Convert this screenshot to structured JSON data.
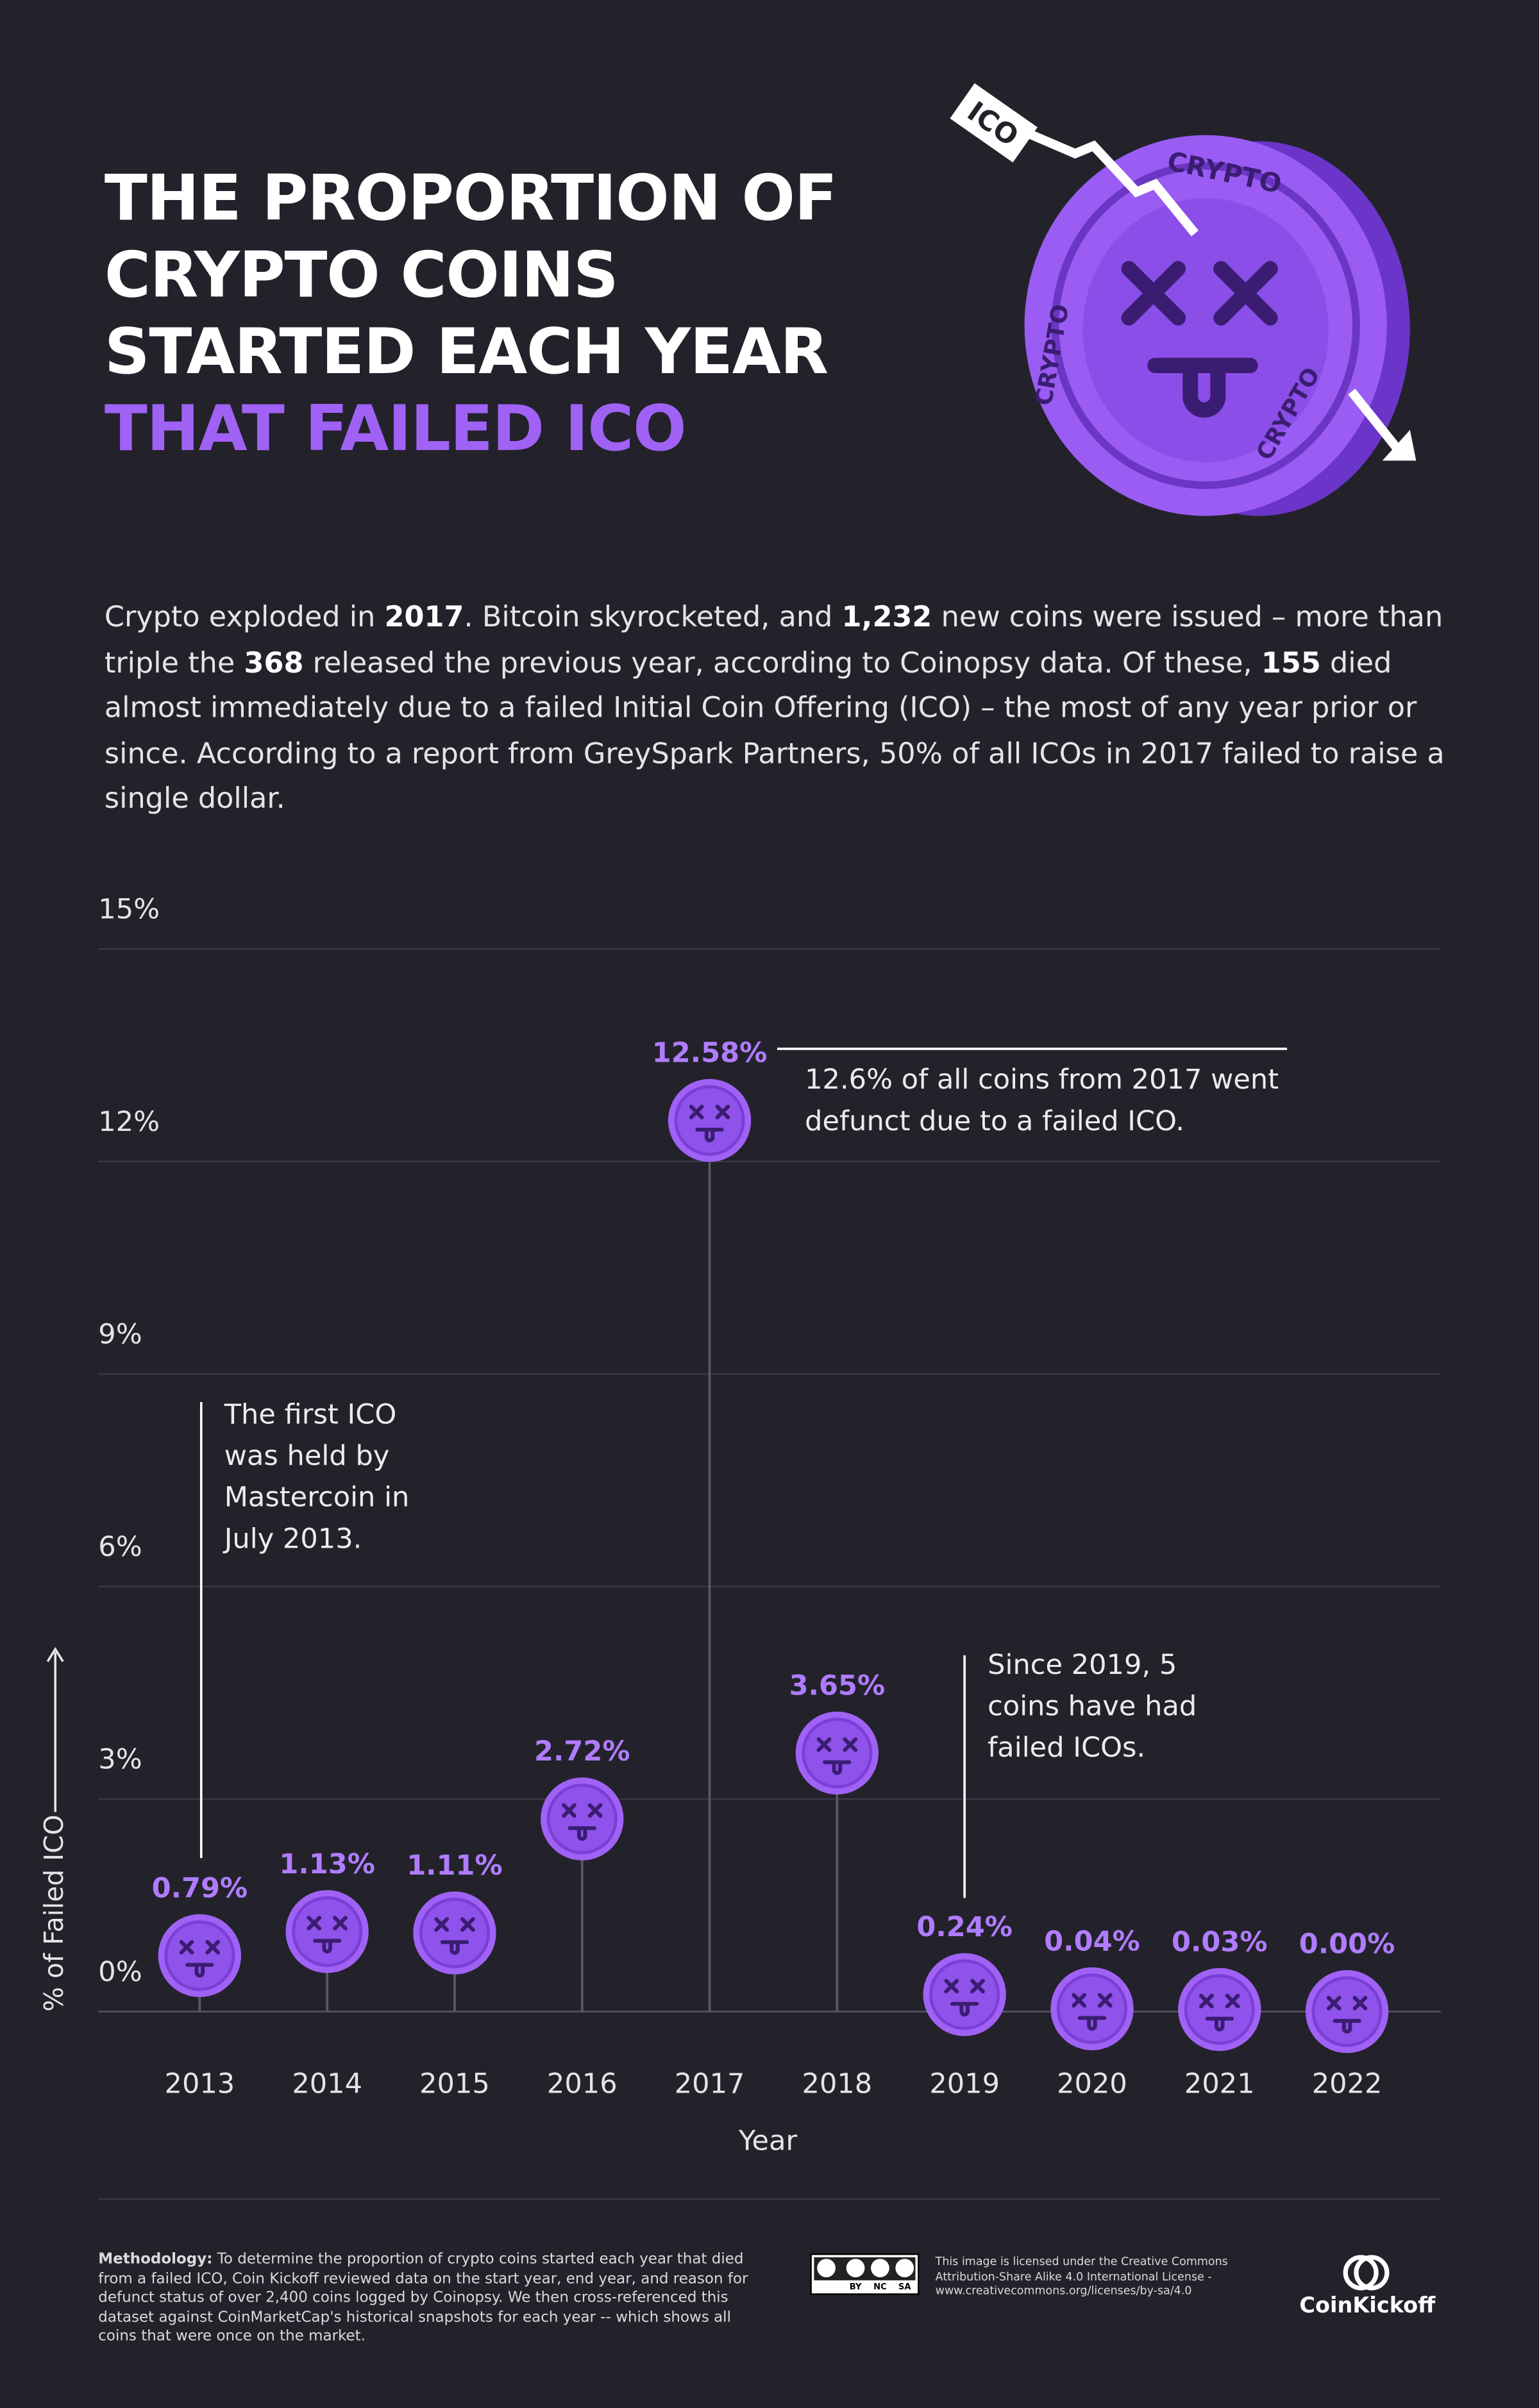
{
  "header": {
    "title_lines": [
      "THE PROPORTION OF",
      "CRYPTO COINS",
      "STARTED EACH YEAR"
    ],
    "highlight": "THAT FAILED ICO"
  },
  "illustration": {
    "arrow_label": "ICO",
    "coin_text": "CRYPTO"
  },
  "intro": [
    "Crypto exploded in ",
    "2017",
    ". Bitcoin skyrocketed, and ",
    "1,232",
    " new coins were issued – more than triple the ",
    "368",
    " released the previous year, according to Coinopsy data. Of these, ",
    "155",
    " died almost immediately due to a failed Initial Coin Offering (ICO) – the most of any year prior or since. According to a report from GreySpark Partners, 50% of all ICOs in 2017 failed to raise a single dollar."
  ],
  "chart_data": {
    "type": "lollipop",
    "x_label": "Year",
    "y_label": "% of Failed ICO",
    "categories": [
      "2013",
      "2014",
      "2015",
      "2016",
      "2017",
      "2018",
      "2019",
      "2020",
      "2021",
      "2022"
    ],
    "values": [
      0.79,
      1.13,
      1.11,
      2.72,
      12.58,
      3.65,
      0.24,
      0.04,
      0.03,
      0.0
    ],
    "value_labels": [
      "0.79%",
      "1.13%",
      "1.11%",
      "2.72%",
      "12.58%",
      "3.65%",
      "0.24%",
      "0.04%",
      "0.03%",
      "0.00%"
    ],
    "color": "#a062f5",
    "ylim": [
      0,
      15
    ],
    "yticks": [
      {
        "value": 0,
        "label": "0%"
      },
      {
        "value": 3,
        "label": "3%"
      },
      {
        "value": 6,
        "label": "6%"
      },
      {
        "value": 9,
        "label": "9%"
      },
      {
        "value": 12,
        "label": "12%"
      },
      {
        "value": 15,
        "label": "15%"
      }
    ],
    "grid": true,
    "annotations": [
      "12.6% of all coins from 2017 went\ndefunct due to a failed ICO.",
      "The first ICO\nwas held by\nMastercoin in\nJuly 2013.",
      "Since 2019, 5\ncoins have had\nfailed ICOs."
    ]
  },
  "footer": {
    "methodology_label": "Methodology:",
    "methodology": "To determine the proportion of crypto coins started each year that died from a failed ICO, Coin Kickoff reviewed data on the start year, end year, and reason for defunct status of over 2,400 coins logged by Coinopsy. We then cross-referenced this dataset against CoinMarketCap's historical snapshots for each year -- which shows all coins that were once on the market.",
    "badge": [
      "BY",
      "NC",
      "SA"
    ],
    "license": "This image is licensed under the Creative Commons Attribution-Share Alike 4.0 International License - www.creativecommons.org/licenses/by-sa/4.0",
    "brand": "CoinKickoff"
  }
}
